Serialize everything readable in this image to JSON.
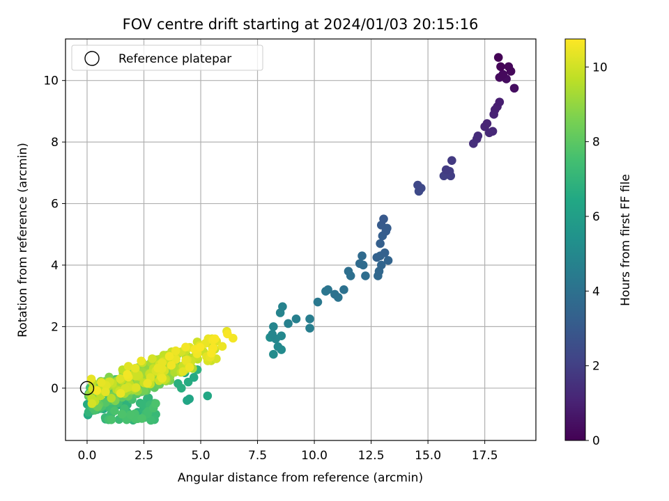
{
  "chart_data": {
    "type": "scatter",
    "title": "FOV centre drift starting at 2024/01/03 20:15:16",
    "xlabel": "Angular distance from reference (arcmin)",
    "ylabel": "Rotation from reference (arcmin)",
    "xlim": [
      -0.95,
      19.75
    ],
    "ylim": [
      -1.7,
      11.35
    ],
    "xticks": [
      "0.0",
      "2.5",
      "5.0",
      "7.5",
      "10.0",
      "12.5",
      "15.0",
      "17.5"
    ],
    "xtick_values": [
      0,
      2.5,
      5,
      7.5,
      10,
      12.5,
      15,
      17.5
    ],
    "yticks": [
      "0",
      "2",
      "4",
      "6",
      "8",
      "10"
    ],
    "ytick_values": [
      0,
      2,
      4,
      6,
      8,
      10
    ],
    "grid": true,
    "legend": {
      "position": "top-left",
      "label": "Reference platepar"
    },
    "reference_point": {
      "x": 0,
      "y": 0
    },
    "colorbar": {
      "label": "Hours from first FF file",
      "range": [
        0,
        10.75
      ],
      "ticks": [
        "0",
        "2",
        "4",
        "6",
        "8",
        "10"
      ],
      "tick_values": [
        0,
        2,
        4,
        6,
        8,
        10
      ],
      "colormap": "viridis"
    },
    "points": [
      [
        18.1,
        10.75,
        0.05
      ],
      [
        18.2,
        10.45,
        0.1
      ],
      [
        18.55,
        10.45,
        0.15
      ],
      [
        18.65,
        10.3,
        0.2
      ],
      [
        18.3,
        10.2,
        0.25
      ],
      [
        18.15,
        10.1,
        0.3
      ],
      [
        18.45,
        10.05,
        0.35
      ],
      [
        18.8,
        9.75,
        0.4
      ],
      [
        18.15,
        9.3,
        0.9
      ],
      [
        18.05,
        9.15,
        0.95
      ],
      [
        17.95,
        9.05,
        1.0
      ],
      [
        17.9,
        8.9,
        1.05
      ],
      [
        17.6,
        8.6,
        1.1
      ],
      [
        17.5,
        8.5,
        1.15
      ],
      [
        17.85,
        8.35,
        1.2
      ],
      [
        17.7,
        8.3,
        1.25
      ],
      [
        17.2,
        8.2,
        1.35
      ],
      [
        17.15,
        8.1,
        1.4
      ],
      [
        17.0,
        7.95,
        1.45
      ],
      [
        16.05,
        7.4,
        1.8
      ],
      [
        15.8,
        7.1,
        1.85
      ],
      [
        15.95,
        7.05,
        1.9
      ],
      [
        16.0,
        6.9,
        1.95
      ],
      [
        15.7,
        6.9,
        2.0
      ],
      [
        14.55,
        6.6,
        2.3
      ],
      [
        14.7,
        6.5,
        2.35
      ],
      [
        14.6,
        6.4,
        2.4
      ],
      [
        13.05,
        5.5,
        3.0
      ],
      [
        12.95,
        5.3,
        3.05
      ],
      [
        13.2,
        5.2,
        3.1
      ],
      [
        13.15,
        5.1,
        3.15
      ],
      [
        13.0,
        4.95,
        3.2
      ],
      [
        12.9,
        4.7,
        3.25
      ],
      [
        13.1,
        4.4,
        3.3
      ],
      [
        12.75,
        4.25,
        3.35
      ],
      [
        12.9,
        4.3,
        3.4
      ],
      [
        13.25,
        4.15,
        3.45
      ],
      [
        12.95,
        4.0,
        3.5
      ],
      [
        12.85,
        3.8,
        3.55
      ],
      [
        12.8,
        3.65,
        3.6
      ],
      [
        12.1,
        4.3,
        3.7
      ],
      [
        12.0,
        4.05,
        3.75
      ],
      [
        12.15,
        4.0,
        3.8
      ],
      [
        12.25,
        3.65,
        3.85
      ],
      [
        11.5,
        3.8,
        3.9
      ],
      [
        11.6,
        3.65,
        3.95
      ],
      [
        11.3,
        3.2,
        4.0
      ],
      [
        10.9,
        3.05,
        4.05
      ],
      [
        11.05,
        2.95,
        4.1
      ],
      [
        10.6,
        3.2,
        4.15
      ],
      [
        10.5,
        3.15,
        4.2
      ],
      [
        10.15,
        2.8,
        4.3
      ],
      [
        9.8,
        2.25,
        4.5
      ],
      [
        9.8,
        1.95,
        4.55
      ],
      [
        9.2,
        2.25,
        4.6
      ],
      [
        8.85,
        2.1,
        4.65
      ],
      [
        8.6,
        2.65,
        4.75
      ],
      [
        8.5,
        2.45,
        4.8
      ],
      [
        8.2,
        2.0,
        4.85
      ],
      [
        8.15,
        1.75,
        4.9
      ],
      [
        8.3,
        1.6,
        4.95
      ],
      [
        8.55,
        1.7,
        5.0
      ],
      [
        8.4,
        1.35,
        5.05
      ],
      [
        8.55,
        1.25,
        5.1
      ],
      [
        8.2,
        1.1,
        5.15
      ],
      [
        8.05,
        1.65,
        5.2
      ],
      [
        4.5,
        -0.35,
        6.3
      ],
      [
        4.4,
        -0.4,
        6.35
      ],
      [
        5.3,
        -0.25,
        6.4
      ],
      [
        4.7,
        0.35,
        6.5
      ],
      [
        4.45,
        0.2,
        6.6
      ],
      [
        4.3,
        0.5,
        6.55
      ],
      [
        4.15,
        0.0,
        6.7
      ],
      [
        4.0,
        0.15,
        6.75
      ],
      [
        4.4,
        0.7,
        6.8
      ],
      [
        4.85,
        0.6,
        6.85
      ]
    ]
  }
}
